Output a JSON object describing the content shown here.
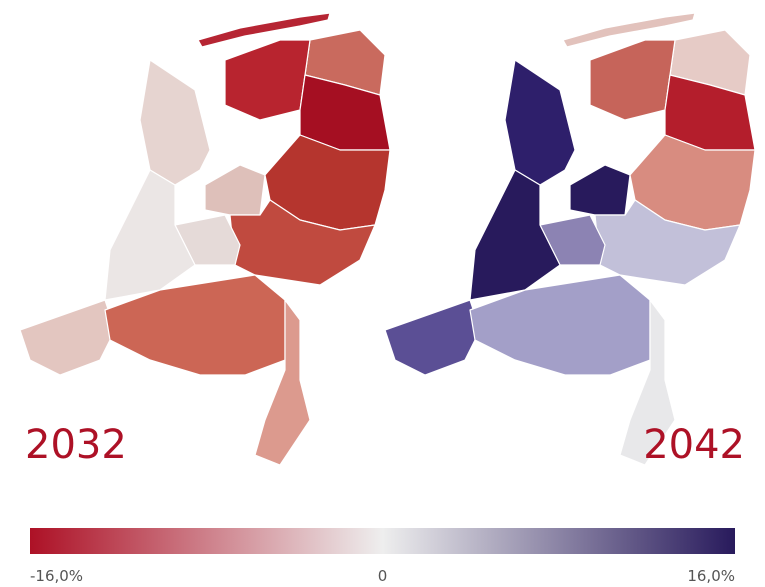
{
  "maps": [
    {
      "label": "2032"
    },
    {
      "label": "2042"
    }
  ],
  "legend": {
    "range": [
      -16,
      16
    ],
    "ticks": [
      {
        "value": -16,
        "label": "-16,0%"
      },
      0,
      {
        "value": 16,
        "label": "16,0%"
      }
    ],
    "colors": [
      "#ad1126",
      "#eeeeee",
      "#281a5c"
    ]
  }
}
